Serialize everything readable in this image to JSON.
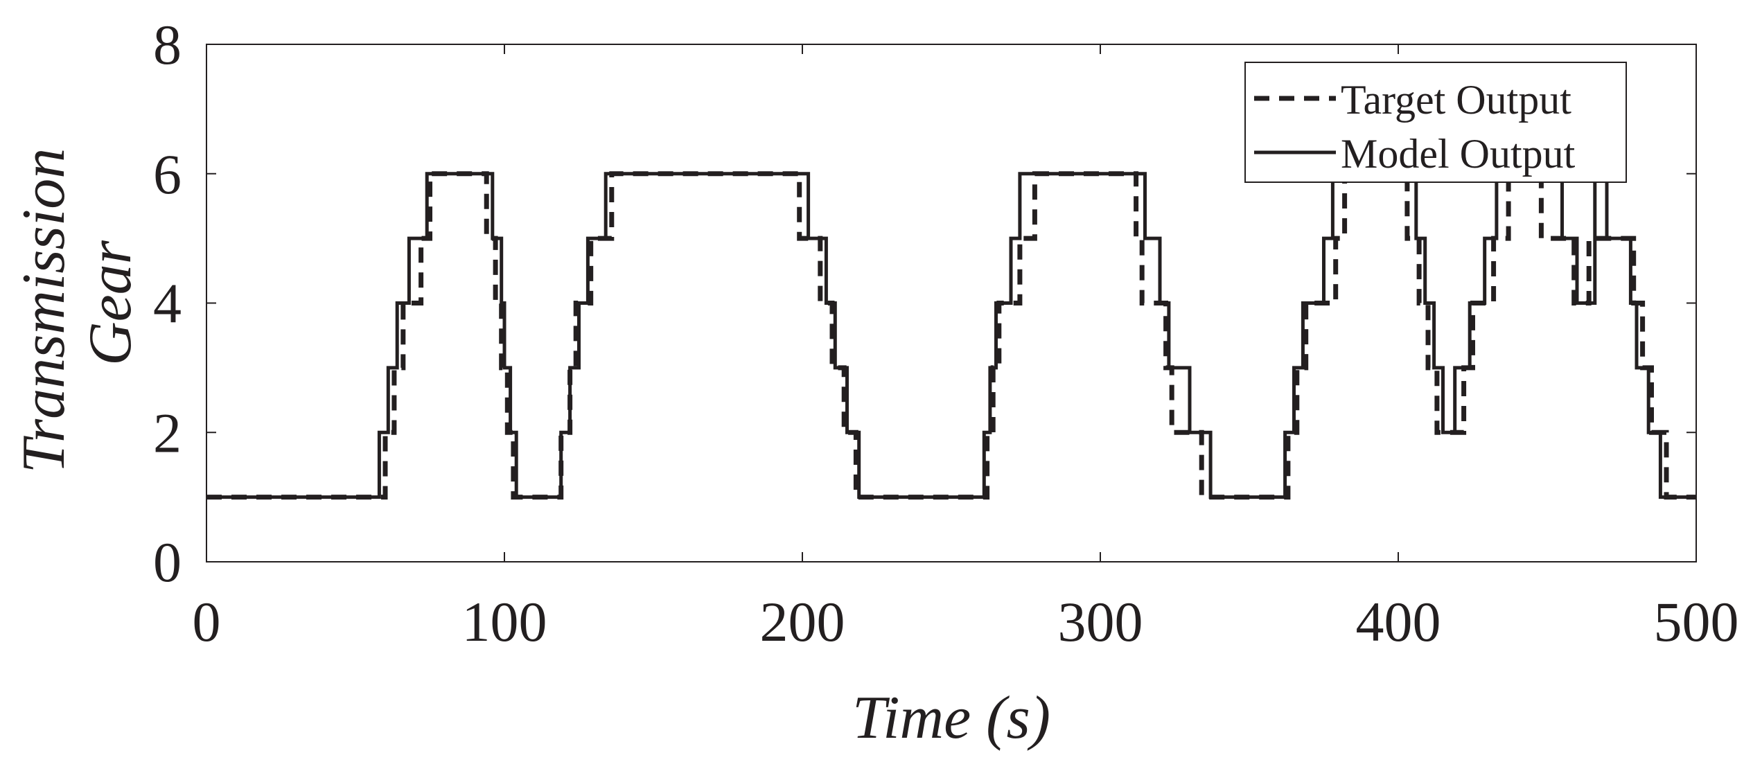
{
  "chart_data": {
    "type": "line",
    "title": "",
    "xlabel": "Time (s)",
    "ylabel_lines": [
      "Transmission",
      "Gear"
    ],
    "xlim": [
      0,
      500
    ],
    "ylim": [
      0,
      8
    ],
    "xticks": [
      0,
      100,
      200,
      300,
      400,
      500
    ],
    "yticks": [
      0,
      2,
      4,
      6,
      8
    ],
    "xtick_labels": [
      "0",
      "100",
      "200",
      "300",
      "400",
      "500"
    ],
    "ytick_labels": [
      "0",
      "2",
      "4",
      "6",
      "8"
    ],
    "grid": false,
    "legend_position": "top-right",
    "series": [
      {
        "name": "Target Output",
        "style": "dashed",
        "color": "#231f20",
        "points": [
          [
            0,
            1
          ],
          [
            60,
            1
          ],
          [
            60,
            2
          ],
          [
            63,
            2
          ],
          [
            63,
            3
          ],
          [
            66,
            3
          ],
          [
            66,
            4
          ],
          [
            72,
            4
          ],
          [
            72,
            5
          ],
          [
            75,
            5
          ],
          [
            75,
            6
          ],
          [
            94,
            6
          ],
          [
            94,
            5
          ],
          [
            97,
            5
          ],
          [
            97,
            4
          ],
          [
            99,
            4
          ],
          [
            99,
            3
          ],
          [
            101,
            3
          ],
          [
            101,
            2
          ],
          [
            103,
            2
          ],
          [
            103,
            1
          ],
          [
            119,
            1
          ],
          [
            119,
            2
          ],
          [
            122,
            2
          ],
          [
            122,
            3
          ],
          [
            124,
            3
          ],
          [
            124,
            4
          ],
          [
            129,
            4
          ],
          [
            129,
            5
          ],
          [
            136,
            5
          ],
          [
            136,
            6
          ],
          [
            199,
            6
          ],
          [
            199,
            5
          ],
          [
            206,
            5
          ],
          [
            206,
            4
          ],
          [
            210,
            4
          ],
          [
            210,
            3
          ],
          [
            214,
            3
          ],
          [
            214,
            2
          ],
          [
            218,
            2
          ],
          [
            218,
            1
          ],
          [
            262,
            1
          ],
          [
            262,
            2
          ],
          [
            264,
            2
          ],
          [
            264,
            3
          ],
          [
            266,
            3
          ],
          [
            266,
            4
          ],
          [
            273,
            4
          ],
          [
            273,
            5
          ],
          [
            278,
            5
          ],
          [
            278,
            6
          ],
          [
            312,
            6
          ],
          [
            312,
            5
          ],
          [
            314,
            5
          ],
          [
            314,
            4
          ],
          [
            322,
            4
          ],
          [
            322,
            3
          ],
          [
            324,
            3
          ],
          [
            324,
            2
          ],
          [
            334,
            2
          ],
          [
            334,
            1
          ],
          [
            363,
            1
          ],
          [
            363,
            2
          ],
          [
            366,
            2
          ],
          [
            366,
            3
          ],
          [
            369,
            3
          ],
          [
            369,
            4
          ],
          [
            379,
            4
          ],
          [
            379,
            5
          ],
          [
            382,
            5
          ],
          [
            382,
            6
          ],
          [
            403,
            6
          ],
          [
            403,
            5
          ],
          [
            407,
            5
          ],
          [
            407,
            4
          ],
          [
            410,
            4
          ],
          [
            410,
            3
          ],
          [
            413,
            3
          ],
          [
            413,
            2
          ],
          [
            422,
            2
          ],
          [
            422,
            3
          ],
          [
            425,
            3
          ],
          [
            425,
            4
          ],
          [
            432,
            4
          ],
          [
            432,
            5
          ],
          [
            437,
            5
          ],
          [
            437,
            6
          ],
          [
            448,
            6
          ],
          [
            448,
            5
          ],
          [
            459,
            5
          ],
          [
            459,
            4
          ],
          [
            464,
            4
          ],
          [
            464,
            5
          ],
          [
            479,
            5
          ],
          [
            479,
            4
          ],
          [
            482,
            4
          ],
          [
            482,
            3
          ],
          [
            485,
            3
          ],
          [
            485,
            2
          ],
          [
            490,
            2
          ],
          [
            490,
            1
          ],
          [
            500,
            1
          ]
        ]
      },
      {
        "name": "Model Output",
        "style": "solid",
        "color": "#231f20",
        "points": [
          [
            0,
            1
          ],
          [
            58,
            1
          ],
          [
            58,
            2
          ],
          [
            61,
            2
          ],
          [
            61,
            3
          ],
          [
            64,
            3
          ],
          [
            64,
            4
          ],
          [
            68,
            4
          ],
          [
            68,
            5
          ],
          [
            74,
            5
          ],
          [
            74,
            6
          ],
          [
            96,
            6
          ],
          [
            96,
            5
          ],
          [
            99,
            5
          ],
          [
            99,
            4
          ],
          [
            100,
            4
          ],
          [
            100,
            3
          ],
          [
            102,
            3
          ],
          [
            102,
            2
          ],
          [
            104,
            2
          ],
          [
            104,
            1
          ],
          [
            119,
            1
          ],
          [
            119,
            2
          ],
          [
            122,
            2
          ],
          [
            122,
            3
          ],
          [
            125,
            3
          ],
          [
            125,
            4
          ],
          [
            128,
            4
          ],
          [
            128,
            5
          ],
          [
            134,
            5
          ],
          [
            134,
            6
          ],
          [
            202,
            6
          ],
          [
            202,
            5
          ],
          [
            208,
            5
          ],
          [
            208,
            4
          ],
          [
            211,
            4
          ],
          [
            211,
            3
          ],
          [
            215,
            3
          ],
          [
            215,
            2
          ],
          [
            219,
            2
          ],
          [
            219,
            1
          ],
          [
            261,
            1
          ],
          [
            261,
            2
          ],
          [
            263,
            2
          ],
          [
            263,
            3
          ],
          [
            265,
            3
          ],
          [
            265,
            4
          ],
          [
            270,
            4
          ],
          [
            270,
            5
          ],
          [
            273,
            5
          ],
          [
            273,
            6
          ],
          [
            315,
            6
          ],
          [
            315,
            5
          ],
          [
            320,
            5
          ],
          [
            320,
            4
          ],
          [
            323,
            4
          ],
          [
            323,
            3
          ],
          [
            330,
            3
          ],
          [
            330,
            2
          ],
          [
            337,
            2
          ],
          [
            337,
            1
          ],
          [
            362,
            1
          ],
          [
            362,
            2
          ],
          [
            365,
            2
          ],
          [
            365,
            3
          ],
          [
            368,
            3
          ],
          [
            368,
            4
          ],
          [
            375,
            4
          ],
          [
            375,
            5
          ],
          [
            378,
            5
          ],
          [
            378,
            6
          ],
          [
            406,
            6
          ],
          [
            406,
            5
          ],
          [
            409,
            5
          ],
          [
            409,
            4
          ],
          [
            412,
            4
          ],
          [
            412,
            3
          ],
          [
            415,
            3
          ],
          [
            415,
            2
          ],
          [
            419,
            2
          ],
          [
            419,
            3
          ],
          [
            424,
            3
          ],
          [
            424,
            4
          ],
          [
            429,
            4
          ],
          [
            429,
            5
          ],
          [
            433,
            5
          ],
          [
            433,
            6
          ],
          [
            455,
            6
          ],
          [
            455,
            5
          ],
          [
            460,
            5
          ],
          [
            460,
            4
          ],
          [
            466,
            4
          ],
          [
            466,
            6
          ],
          [
            470,
            6
          ],
          [
            470,
            5
          ],
          [
            478,
            5
          ],
          [
            478,
            4
          ],
          [
            480,
            4
          ],
          [
            480,
            3
          ],
          [
            484,
            3
          ],
          [
            484,
            2
          ],
          [
            488,
            2
          ],
          [
            488,
            1
          ],
          [
            500,
            1
          ]
        ]
      }
    ]
  }
}
